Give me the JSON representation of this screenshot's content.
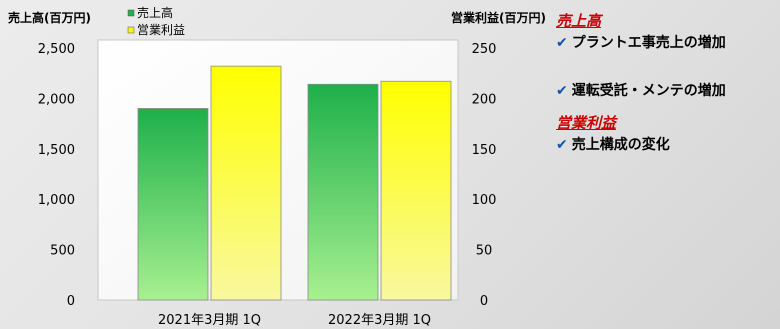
{
  "chart_data": {
    "type": "bar",
    "categories": [
      "2021年3月期 1Q",
      "2022年3月期 1Q"
    ],
    "series": [
      {
        "name": "売上高",
        "axis": "left",
        "values": [
          1900,
          2140
        ],
        "color": "#22b14c"
      },
      {
        "name": "営業利益",
        "axis": "right",
        "values": [
          232,
          217
        ],
        "color": "#f5f51a"
      }
    ],
    "ylabel_left": "売上高(百万円)",
    "ylabel_right": "営業利益(百万円)",
    "ylim_left": [
      0,
      2500
    ],
    "ylim_right": [
      0,
      250
    ],
    "yticks_left": [
      "0",
      "500",
      "1,000",
      "1,500",
      "2,000",
      "2,500"
    ],
    "yticks_right": [
      "0",
      "50",
      "100",
      "150",
      "200",
      "250"
    ],
    "legend": "top-left",
    "grid": false
  },
  "notes": {
    "sales": {
      "heading": "売上高",
      "items": [
        "プラントエ事売上の増加",
        "運転受託・メンテの増加"
      ]
    },
    "profit": {
      "heading": "営業利益",
      "items": [
        "売上構成の変化"
      ]
    },
    "check_icon": "✔"
  }
}
